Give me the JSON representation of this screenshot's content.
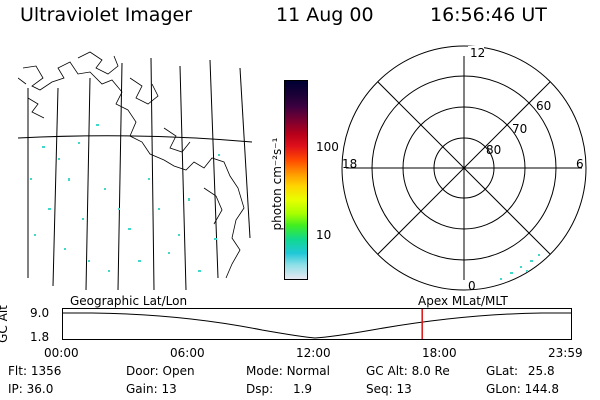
{
  "header": {
    "instrument": "Ultraviolet Imager",
    "date": "11 Aug 00",
    "time": "16:56:46 UT"
  },
  "colorbar": {
    "unit_label": "photon cm⁻²s⁻¹",
    "ticks": [
      {
        "value": 100,
        "label": "100"
      },
      {
        "value": 10,
        "label": "10"
      }
    ],
    "colors": [
      "#000033",
      "#1a0036",
      "#3d0040",
      "#7a0030",
      "#b8001a",
      "#e0101a",
      "#ff4a00",
      "#ff9a00",
      "#ffd400",
      "#e8ff00",
      "#a8ff00",
      "#40ee20",
      "#10d890",
      "#20c8d8",
      "#90e0e8",
      "#e8e8f0"
    ]
  },
  "polar_plot": {
    "mlt_labels": {
      "top": "12",
      "left": "18",
      "right": "6",
      "bottom": "0"
    },
    "lat_rings": [
      "60",
      "70",
      "80"
    ]
  },
  "map_panel": {
    "left_caption": "Geographic Lat/Lon",
    "right_caption": "Apex MLat/MLT"
  },
  "altitude_plot": {
    "ylabel": "GC Alt",
    "y_ticks": [
      "9.0",
      "1.8"
    ],
    "x_ticks": [
      "00:00",
      "06:00",
      "12:00",
      "18:00",
      "23:59"
    ],
    "current_time_hours": 16.95
  },
  "footer": {
    "flt_label": "Flt:",
    "flt_value": "1356",
    "ip_label": "IP:",
    "ip_value": "36.0",
    "door_label": "Door:",
    "door_value": "Open",
    "gain_label": "Gain:",
    "gain_value": "13",
    "mode_label": "Mode:",
    "mode_value": "Normal",
    "dsp_label": "Dsp:",
    "dsp_value": "1.9",
    "gcalt_label": "GC Alt:",
    "gcalt_value": "8.0 Re",
    "seq_label": "Seq:",
    "seq_value": "13",
    "glat_label": "GLat:",
    "glat_value": "25.8",
    "glon_label": "GLon:",
    "glon_value": "144.8"
  }
}
